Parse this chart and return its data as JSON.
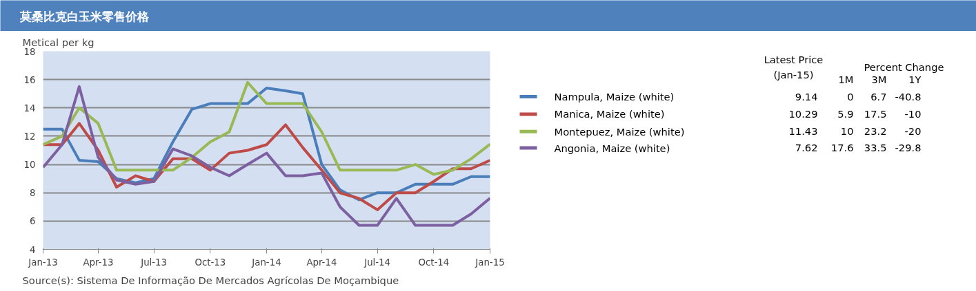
{
  "chart_data": {
    "type": "line",
    "title": "莫桑比克白玉米零售价格",
    "ylabel": "Metical per kg",
    "x": [
      "2013-01",
      "2013-02",
      "2013-03",
      "2013-04",
      "2013-05",
      "2013-06",
      "2013-07",
      "2013-08",
      "2013-09",
      "2013-10",
      "2013-11",
      "2013-12",
      "2014-01",
      "2014-02",
      "2014-03",
      "2014-04",
      "2014-05",
      "2014-06",
      "2014-07",
      "2014-08",
      "2014-09",
      "2014-10",
      "2014-11",
      "2014-12",
      "2015-01"
    ],
    "series": [
      {
        "name": "Nampula, Maize (white)",
        "color": "#4a7ebb",
        "values": [
          12.5,
          12.5,
          10.3,
          10.2,
          9.0,
          8.7,
          9.0,
          11.6,
          13.9,
          14.3,
          14.3,
          14.3,
          15.4,
          15.2,
          15.0,
          10.0,
          8.2,
          7.5,
          8.0,
          8.0,
          8.6,
          8.6,
          8.6,
          9.14,
          9.14
        ]
      },
      {
        "name": "Manica, Maize (white)",
        "color": "#be4b48",
        "values": [
          11.4,
          11.4,
          12.9,
          11.0,
          8.4,
          9.2,
          8.8,
          10.4,
          10.4,
          9.6,
          10.8,
          11.0,
          11.4,
          12.8,
          11.2,
          9.6,
          8.0,
          7.6,
          6.8,
          8.0,
          8.0,
          8.8,
          9.7,
          9.7,
          10.29
        ]
      },
      {
        "name": "Montepuez, Maize (white)",
        "color": "#98b954",
        "values": [
          11.4,
          12.0,
          14.0,
          12.9,
          9.6,
          9.6,
          9.6,
          9.6,
          10.5,
          11.6,
          12.3,
          15.8,
          14.3,
          14.3,
          14.3,
          12.3,
          9.6,
          9.6,
          9.6,
          9.6,
          10.0,
          9.3,
          9.6,
          10.4,
          11.43
        ]
      },
      {
        "name": "Angonia, Maize (white)",
        "color": "#7d60a0",
        "values": [
          9.8,
          11.4,
          15.5,
          10.5,
          8.9,
          8.6,
          8.8,
          11.1,
          10.6,
          9.8,
          9.2,
          10.0,
          10.8,
          9.2,
          9.2,
          9.4,
          7.0,
          5.7,
          5.7,
          7.6,
          5.7,
          5.7,
          5.7,
          6.5,
          7.62
        ]
      }
    ],
    "xlim": [
      "2013-01",
      "2015-01"
    ],
    "xticks": [
      {
        "value": "2013-01",
        "label": "Jan-13"
      },
      {
        "value": "2013-04",
        "label": "Apr-13"
      },
      {
        "value": "2013-07",
        "label": "Jul-13"
      },
      {
        "value": "2013-10",
        "label": "Oct-13"
      },
      {
        "value": "2014-01",
        "label": "Jan-14"
      },
      {
        "value": "2014-04",
        "label": "Apr-14"
      },
      {
        "value": "2014-07",
        "label": "Jul-14"
      },
      {
        "value": "2014-10",
        "label": "Oct-14"
      },
      {
        "value": "2015-01",
        "label": "Jan-15"
      }
    ],
    "ylim": [
      4,
      18
    ],
    "yticks": [
      4,
      6,
      8,
      10,
      12,
      14,
      16,
      18
    ],
    "grid": "y",
    "legend": "right",
    "marker": "none",
    "line_style": "solid",
    "annotations": [
      "Latest Price\n(Jan-15)",
      "Percent Change",
      "1M",
      "3M",
      "1Y",
      "9.14",
      "0",
      "6.7",
      "-40.8",
      "10.29",
      "5.9",
      "17.5",
      "-10",
      "11.43",
      "10",
      "23.2",
      "-20",
      "7.62",
      "17.6",
      "33.5",
      "-29.8",
      "Source(s): Sistema De Informação De Mercados Agrícolas De Moçambique"
    ]
  }
}
